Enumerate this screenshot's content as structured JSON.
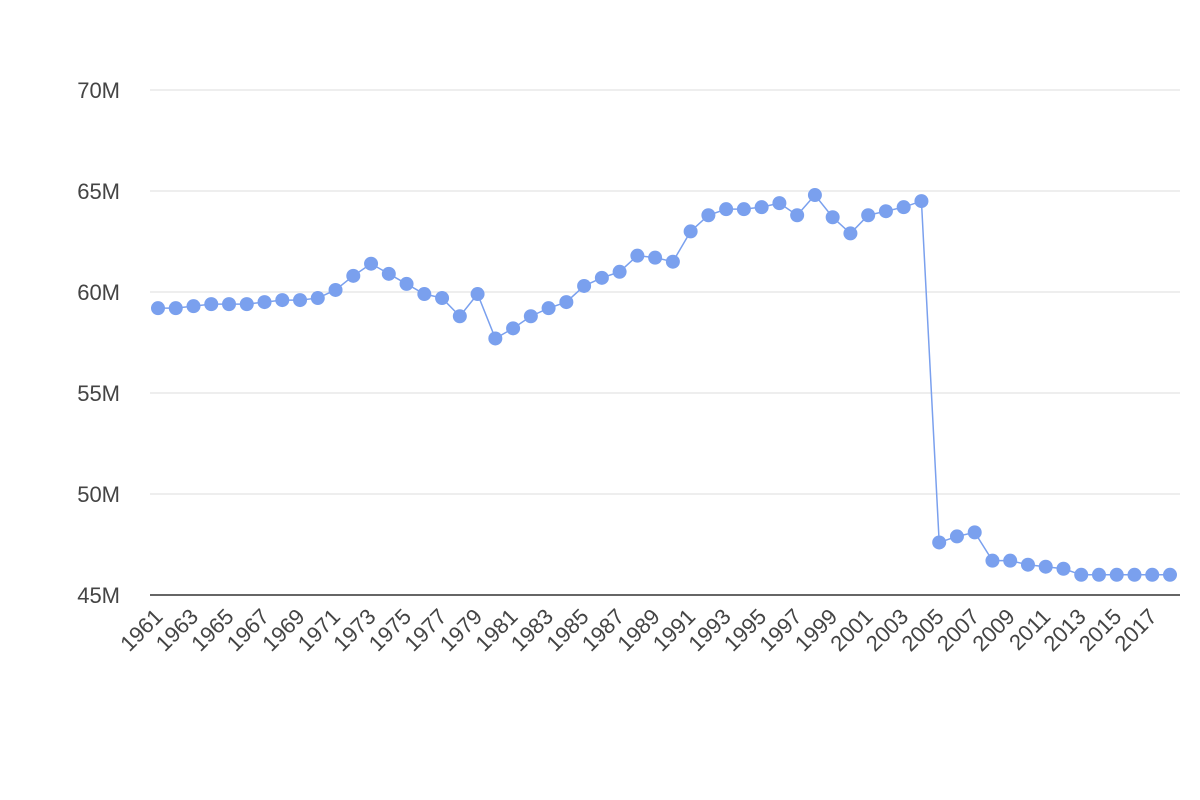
{
  "chart_data": {
    "type": "line",
    "categories": [
      "1961",
      null,
      "1963",
      null,
      "1965",
      null,
      "1967",
      null,
      "1969",
      null,
      "1971",
      null,
      "1973",
      null,
      "1975",
      null,
      "1977",
      null,
      "1979",
      null,
      "1981",
      null,
      "1983",
      null,
      "1985",
      null,
      "1987",
      null,
      "1989",
      null,
      "1991",
      null,
      "1993",
      null,
      "1995",
      null,
      "1997",
      null,
      "1999",
      null,
      "2001",
      null,
      "2003",
      null,
      "2005",
      null,
      "2007",
      null,
      "2009",
      null,
      "2011",
      null,
      "2013",
      null,
      "2015",
      null,
      "2017",
      null
    ],
    "series": [
      {
        "color": "#7aa0ee",
        "values": [
          59200000,
          59200000,
          59300000,
          59400000,
          59400000,
          59400000,
          59500000,
          59600000,
          59600000,
          59700000,
          60100000,
          60800000,
          61400000,
          60900000,
          60400000,
          59900000,
          59700000,
          58800000,
          59900000,
          57700000,
          58200000,
          58800000,
          59200000,
          59500000,
          60300000,
          60700000,
          61000000,
          61800000,
          61700000,
          61500000,
          63000000,
          63800000,
          64100000,
          64100000,
          64200000,
          64400000,
          63800000,
          64800000,
          63700000,
          62900000,
          63800000,
          64000000,
          64200000,
          64500000,
          47600000,
          47900000,
          48100000,
          46700000,
          46700000,
          46500000,
          46400000,
          46300000,
          46000000,
          46000000,
          46000000,
          46000000,
          46000000,
          46000000
        ]
      }
    ],
    "ylim": [
      45000000,
      70000000
    ],
    "yticks": [
      {
        "value": 45000000,
        "label": "45M"
      },
      {
        "value": 50000000,
        "label": "50M"
      },
      {
        "value": 55000000,
        "label": "55M"
      },
      {
        "value": 60000000,
        "label": "60M"
      },
      {
        "value": 65000000,
        "label": "65M"
      },
      {
        "value": 70000000,
        "label": "70M"
      }
    ],
    "grid": true
  }
}
